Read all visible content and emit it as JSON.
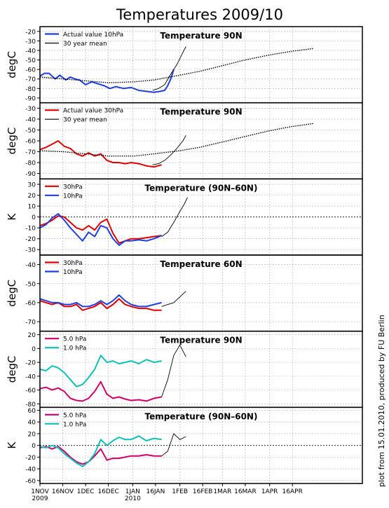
{
  "title": "Temperatures 2009/10",
  "credit": "plot from 15.01.2010, produced by FU Berlin",
  "x_axis": {
    "tick_labels": [
      "1NOV",
      "16NOV",
      "1DEC",
      "16DEC",
      "1JAN",
      "16JAN",
      "1FEB",
      "16FEB",
      "1MAR",
      "16MAR",
      "1APR",
      "16APR"
    ],
    "year_labels": {
      "start": "2009",
      "jan": "2010"
    }
  },
  "colors": {
    "red": "#e00000",
    "blue": "#1f3fe0",
    "magenta": "#d0006a",
    "cyan": "#10c0b8",
    "black": "#000000"
  },
  "chart_data": [
    {
      "type": "line",
      "unit": "degC",
      "title": "Temperature 90N",
      "x_unit": "days since 1 Nov 2009",
      "ylim": [
        -95,
        -15
      ],
      "yticks": [
        -20,
        -30,
        -40,
        -50,
        -60,
        -70,
        -80,
        -90
      ],
      "series": [
        {
          "name": "Actual value 10hPa",
          "color": "#1f3fe0",
          "style": "solid",
          "x": [
            0,
            3,
            6,
            10,
            13,
            17,
            20,
            23,
            26,
            30,
            34,
            38,
            42,
            46,
            50,
            55,
            60,
            65,
            70,
            75,
            79,
            82,
            84,
            86,
            88
          ],
          "y": [
            -67,
            -64,
            -64,
            -70,
            -66,
            -71,
            -68,
            -70,
            -71,
            -76,
            -73,
            -75,
            -77,
            -80,
            -78,
            -80,
            -79,
            -82,
            -83,
            -84,
            -83,
            -82,
            -77,
            -70,
            -60
          ]
        },
        {
          "name": "30 year mean",
          "color": "#000000",
          "style": "dotted",
          "x": [
            0,
            15,
            30,
            45,
            62,
            75,
            92,
            105,
            120,
            135,
            150,
            165,
            180
          ],
          "y": [
            -68,
            -70,
            -72,
            -74,
            -73,
            -71,
            -66,
            -62,
            -56,
            -50,
            -45,
            -41,
            -38
          ]
        },
        {
          "name": "",
          "color": "#000000",
          "style": "solid",
          "x": [
            74,
            78,
            82,
            86,
            90,
            94,
            96
          ],
          "y": [
            -82,
            -80,
            -76,
            -65,
            -55,
            -42,
            -36
          ]
        }
      ]
    },
    {
      "type": "line",
      "unit": "degC",
      "title": "Temperature 90N",
      "x_unit": "days since 1 Nov 2009",
      "ylim": [
        -95,
        -25
      ],
      "yticks": [
        -30,
        -40,
        -50,
        -60,
        -70,
        -80,
        -90
      ],
      "series": [
        {
          "name": "Actual value 30hPa",
          "color": "#e00000",
          "style": "solid",
          "x": [
            0,
            4,
            8,
            12,
            16,
            20,
            24,
            28,
            32,
            36,
            40,
            44,
            48,
            52,
            56,
            60,
            65,
            70,
            75,
            80
          ],
          "y": [
            -68,
            -66,
            -63,
            -60,
            -65,
            -67,
            -72,
            -74,
            -71,
            -74,
            -72,
            -78,
            -80,
            -80,
            -81,
            -80,
            -81,
            -83,
            -84,
            -82
          ]
        },
        {
          "name": "30 year mean",
          "color": "#000000",
          "style": "dotted",
          "x": [
            0,
            15,
            30,
            45,
            62,
            75,
            92,
            105,
            120,
            135,
            150,
            165,
            180
          ],
          "y": [
            -69,
            -70,
            -72,
            -74,
            -74,
            -72,
            -69,
            -66,
            -61,
            -56,
            -51,
            -47,
            -44
          ]
        },
        {
          "name": "",
          "color": "#000000",
          "style": "solid",
          "x": [
            74,
            78,
            82,
            86,
            90,
            94,
            96
          ],
          "y": [
            -82,
            -81,
            -78,
            -73,
            -67,
            -60,
            -55
          ]
        }
      ]
    },
    {
      "type": "line",
      "unit": "K",
      "title": "Temperature (90N–60N)",
      "x_unit": "days since 1 Nov 2009",
      "ylim": [
        -35,
        35
      ],
      "zero_line": true,
      "yticks": [
        30,
        20,
        10,
        0,
        -10,
        -20,
        -30
      ],
      "series": [
        {
          "name": "30hPa",
          "color": "#e00000",
          "style": "solid",
          "x": [
            0,
            4,
            8,
            12,
            16,
            20,
            24,
            28,
            32,
            36,
            40,
            44,
            48,
            52,
            56,
            60,
            65,
            70,
            75,
            80
          ],
          "y": [
            -8,
            -6,
            -3,
            1,
            0,
            -5,
            -10,
            -12,
            -8,
            -12,
            -5,
            -2,
            -15,
            -24,
            -22,
            -20,
            -20,
            -19,
            -18,
            -17
          ]
        },
        {
          "name": "10hPa",
          "color": "#1f3fe0",
          "style": "solid",
          "x": [
            0,
            4,
            8,
            12,
            16,
            20,
            24,
            28,
            32,
            36,
            40,
            44,
            48,
            52,
            56,
            60,
            65,
            70,
            75,
            80
          ],
          "y": [
            -10,
            -7,
            -1,
            3,
            -3,
            -10,
            -16,
            -22,
            -14,
            -18,
            -8,
            -10,
            -20,
            -26,
            -22,
            -22,
            -21,
            -22,
            -20,
            -17
          ]
        },
        {
          "name": "",
          "color": "#000000",
          "style": "solid",
          "x": [
            80,
            84,
            88,
            92,
            95,
            97
          ],
          "y": [
            -18,
            -14,
            -5,
            5,
            12,
            18
          ]
        }
      ]
    },
    {
      "type": "line",
      "unit": "degC",
      "title": "Temperature 60N",
      "x_unit": "days since 1 Nov 2009",
      "ylim": [
        -75,
        -35
      ],
      "yticks": [
        -40,
        -50,
        -60,
        -70
      ],
      "series": [
        {
          "name": "30hPa",
          "color": "#e00000",
          "style": "solid",
          "x": [
            0,
            4,
            8,
            12,
            16,
            20,
            24,
            28,
            32,
            36,
            40,
            44,
            48,
            52,
            56,
            60,
            65,
            70,
            75,
            80
          ],
          "y": [
            -59,
            -60,
            -61,
            -60,
            -62,
            -62,
            -61,
            -64,
            -63,
            -62,
            -60,
            -63,
            -61,
            -58,
            -61,
            -62,
            -63,
            -63,
            -64,
            -64
          ]
        },
        {
          "name": "10hPa",
          "color": "#1f3fe0",
          "style": "solid",
          "x": [
            0,
            4,
            8,
            12,
            16,
            20,
            24,
            28,
            32,
            36,
            40,
            44,
            48,
            52,
            56,
            60,
            65,
            70,
            75,
            80
          ],
          "y": [
            -58,
            -59,
            -60,
            -60,
            -61,
            -61,
            -60,
            -62,
            -62,
            -61,
            -59,
            -61,
            -59,
            -56,
            -59,
            -61,
            -62,
            -62,
            -61,
            -60
          ]
        },
        {
          "name": "",
          "color": "#000000",
          "style": "solid",
          "x": [
            80,
            84,
            88,
            92,
            96
          ],
          "y": [
            -62,
            -61,
            -60,
            -57,
            -54
          ]
        }
      ]
    },
    {
      "type": "line",
      "unit": "degC",
      "title": "Temperature 90N",
      "x_unit": "days since 1 Nov 2009",
      "ylim": [
        -85,
        25
      ],
      "yticks": [
        20,
        0,
        -20,
        -40,
        -60,
        -80
      ],
      "series": [
        {
          "name": "5.0 hPa",
          "color": "#d0006a",
          "style": "solid",
          "x": [
            0,
            4,
            8,
            12,
            16,
            20,
            24,
            28,
            32,
            36,
            40,
            44,
            48,
            52,
            56,
            60,
            65,
            70,
            75,
            80
          ],
          "y": [
            -58,
            -56,
            -60,
            -57,
            -62,
            -72,
            -75,
            -76,
            -72,
            -62,
            -48,
            -66,
            -72,
            -70,
            -73,
            -75,
            -74,
            -76,
            -72,
            -70
          ]
        },
        {
          "name": "1.0 hPa",
          "color": "#10c0b8",
          "style": "solid",
          "x": [
            0,
            4,
            8,
            12,
            16,
            20,
            24,
            28,
            32,
            36,
            40,
            44,
            48,
            52,
            56,
            60,
            65,
            70,
            75,
            80
          ],
          "y": [
            -30,
            -32,
            -25,
            -28,
            -35,
            -45,
            -55,
            -52,
            -42,
            -30,
            -10,
            -20,
            -18,
            -22,
            -20,
            -18,
            -22,
            -16,
            -20,
            -18
          ]
        },
        {
          "name": "",
          "color": "#000000",
          "style": "solid",
          "x": [
            80,
            84,
            88,
            92,
            96
          ],
          "y": [
            -70,
            -45,
            -10,
            5,
            -12
          ]
        }
      ]
    },
    {
      "type": "line",
      "unit": "K",
      "title": "Temperature (90N–60N)",
      "x_unit": "days since 1 Nov 2009",
      "ylim": [
        -65,
        65
      ],
      "zero_line": true,
      "yticks": [
        60,
        40,
        20,
        0,
        -20,
        -40,
        -60
      ],
      "series": [
        {
          "name": "5.0 hPa",
          "color": "#d0006a",
          "style": "solid",
          "x": [
            0,
            4,
            8,
            12,
            16,
            20,
            24,
            28,
            32,
            36,
            40,
            44,
            48,
            52,
            56,
            60,
            65,
            70,
            75,
            80
          ],
          "y": [
            -4,
            -2,
            -6,
            -2,
            -10,
            -20,
            -28,
            -32,
            -28,
            -18,
            -6,
            -25,
            -22,
            -22,
            -20,
            -18,
            -18,
            -16,
            -18,
            -18
          ]
        },
        {
          "name": "1.0 hPa",
          "color": "#10c0b8",
          "style": "solid",
          "x": [
            0,
            4,
            8,
            12,
            16,
            20,
            24,
            28,
            32,
            36,
            40,
            44,
            48,
            52,
            56,
            60,
            65,
            70,
            75,
            80
          ],
          "y": [
            -2,
            -4,
            0,
            -4,
            -14,
            -22,
            -30,
            -36,
            -28,
            -14,
            10,
            0,
            8,
            14,
            10,
            10,
            16,
            8,
            12,
            10
          ]
        },
        {
          "name": "",
          "color": "#000000",
          "style": "solid",
          "x": [
            80,
            84,
            88,
            92,
            96
          ],
          "y": [
            -18,
            -10,
            20,
            10,
            15
          ]
        }
      ]
    }
  ]
}
